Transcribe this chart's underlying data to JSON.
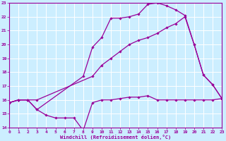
{
  "bg_color": "#cceeff",
  "grid_color": "#ffffff",
  "line_color": "#990099",
  "xlim": [
    0,
    23
  ],
  "ylim": [
    14,
    23
  ],
  "xticks": [
    0,
    1,
    2,
    3,
    4,
    5,
    6,
    7,
    8,
    9,
    10,
    11,
    12,
    13,
    14,
    15,
    16,
    17,
    18,
    19,
    20,
    21,
    22,
    23
  ],
  "yticks": [
    14,
    15,
    16,
    17,
    18,
    19,
    20,
    21,
    22,
    23
  ],
  "xlabel": "Windchill (Refroidissement éolien,°C)",
  "line1_x": [
    0,
    1,
    2,
    3,
    4,
    5,
    6,
    7,
    8,
    9,
    10,
    11,
    12,
    13,
    14,
    15,
    16,
    17,
    18,
    19,
    20,
    21,
    22,
    23
  ],
  "line1_y": [
    15.8,
    16.0,
    16.0,
    15.3,
    14.9,
    14.7,
    14.7,
    14.7,
    13.8,
    15.8,
    16.0,
    16.0,
    16.1,
    16.2,
    16.2,
    16.3,
    16.0,
    16.0,
    16.0,
    16.0,
    16.0,
    16.0,
    16.0,
    16.1
  ],
  "line2_x": [
    0,
    1,
    2,
    3,
    9,
    10,
    11,
    12,
    13,
    14,
    15,
    16,
    17,
    18,
    19,
    20,
    21,
    22,
    23
  ],
  "line2_y": [
    15.8,
    16.0,
    16.0,
    16.0,
    17.7,
    18.5,
    19.0,
    19.5,
    20.0,
    20.3,
    20.5,
    20.8,
    21.2,
    21.5,
    22.0,
    20.0,
    17.8,
    17.1,
    16.1
  ],
  "line3_x": [
    0,
    1,
    2,
    3,
    8,
    9,
    10,
    11,
    12,
    13,
    14,
    15,
    16,
    17,
    18,
    19,
    20,
    21,
    22,
    23
  ],
  "line3_y": [
    15.8,
    16.0,
    16.0,
    15.3,
    17.7,
    19.8,
    20.5,
    21.9,
    21.9,
    22.0,
    22.2,
    22.9,
    23.0,
    22.8,
    22.5,
    22.1,
    20.0,
    17.8,
    17.1,
    16.1
  ]
}
